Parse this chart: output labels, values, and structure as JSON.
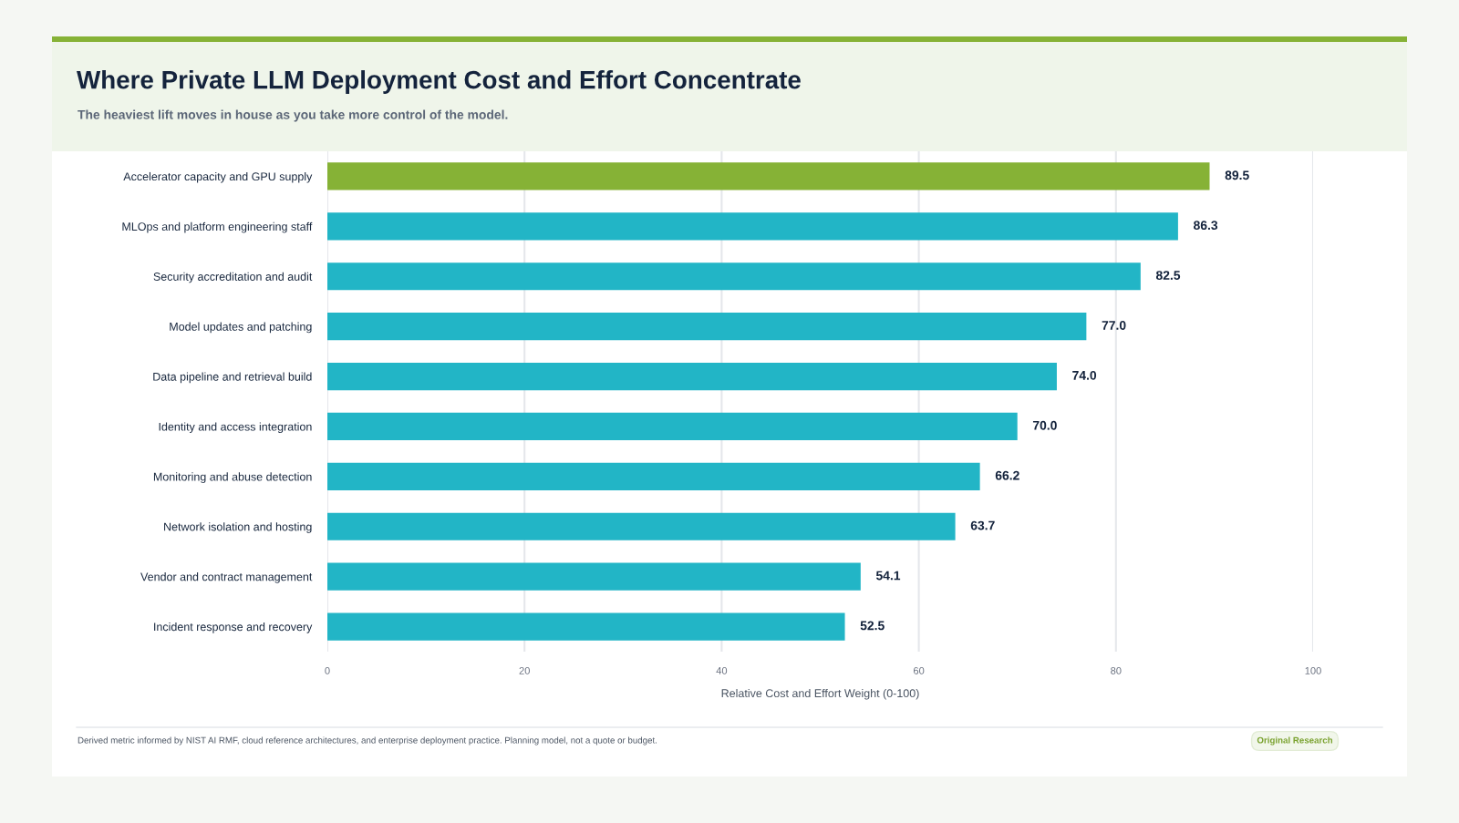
{
  "chart_data": {
    "type": "bar",
    "orientation": "horizontal",
    "title": "Where Private LLM Deployment Cost and Effort Concentrate",
    "subtitle": "The heaviest lift moves in house as you take more control of the model.",
    "xlabel": "Relative Cost and Effort Weight (0-100)",
    "categories": [
      "Accelerator capacity and GPU supply",
      "MLOps and platform engineering staff",
      "Security accreditation and audit",
      "Model updates and patching",
      "Data pipeline and retrieval build",
      "Identity and access integration",
      "Monitoring and abuse detection",
      "Network isolation and hosting",
      "Vendor and contract management",
      "Incident response and recovery"
    ],
    "values": [
      89.5,
      86.3,
      82.5,
      77.0,
      74.0,
      70.0,
      66.2,
      63.7,
      54.1,
      52.5
    ],
    "colors": [
      "#86b236",
      "#22b5c6",
      "#22b5c6",
      "#22b5c6",
      "#22b5c6",
      "#22b5c6",
      "#22b5c6",
      "#22b5c6",
      "#22b5c6",
      "#22b5c6"
    ],
    "value_labels": [
      "89.5",
      "86.3",
      "82.5",
      "77.0",
      "74.0",
      "70.0",
      "66.2",
      "63.7",
      "54.1",
      "52.5"
    ],
    "xlim": [
      0,
      100
    ],
    "xticks": [
      0,
      20,
      40,
      60,
      80,
      100
    ],
    "grid": "x",
    "annotations": [
      "Derived metric informed by NIST AI RMF, cloud reference architectures, and enterprise deployment practice. Planning model, not a quote or budget.",
      "Original Research"
    ]
  }
}
